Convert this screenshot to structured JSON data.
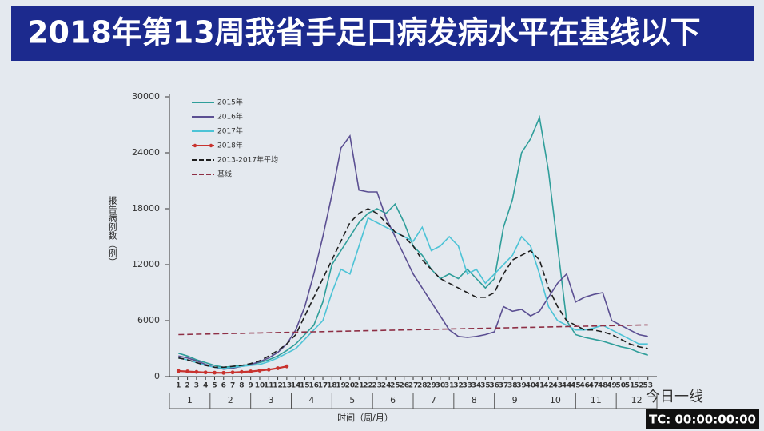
{
  "chart_data": {
    "type": "line",
    "title": "2018年第13周我省手足口病发病水平在基线以下",
    "y_label": "报告病例数（例）",
    "x_label": "时间（周/月）",
    "watermark": "今日一线",
    "timecode": "TC: 00:00:00:00",
    "x": [
      1,
      2,
      3,
      4,
      5,
      6,
      7,
      8,
      9,
      10,
      11,
      12,
      13,
      14,
      15,
      16,
      17,
      18,
      19,
      20,
      21,
      22,
      23,
      24,
      25,
      26,
      27,
      28,
      29,
      30,
      31,
      32,
      33,
      34,
      35,
      36,
      37,
      38,
      39,
      40,
      41,
      42,
      43,
      44,
      45,
      46,
      47,
      48,
      49,
      50,
      51,
      52,
      53
    ],
    "xticks": [
      1,
      2,
      3,
      4,
      5,
      6,
      7,
      8,
      9,
      10,
      11,
      12,
      13,
      14,
      15,
      16,
      17,
      18,
      19,
      20,
      21,
      22,
      23,
      24,
      25,
      26,
      27,
      28,
      29,
      30,
      31,
      32,
      33,
      34,
      35,
      36,
      37,
      38,
      39,
      40,
      41,
      42,
      43,
      44,
      45,
      46,
      47,
      48,
      49,
      50,
      51,
      52,
      53
    ],
    "xlim": [
      0,
      54
    ],
    "months": [
      "1",
      "2",
      "3",
      "4",
      "5",
      "6",
      "7",
      "8",
      "9",
      "10",
      "11",
      "12"
    ],
    "ylim": [
      0,
      30000
    ],
    "yticks": [
      0,
      6000,
      12000,
      18000,
      24000,
      30000
    ],
    "legend": "top-left",
    "series": [
      {
        "name": "2015年",
        "color": "#2f9e9a",
        "dash": false,
        "markers": false,
        "values": [
          2500,
          2200,
          1800,
          1500,
          1200,
          1000,
          1100,
          1200,
          1300,
          1500,
          1800,
          2200,
          2800,
          3500,
          4500,
          5500,
          8000,
          12000,
          13500,
          15000,
          16500,
          17500,
          18000,
          17500,
          18500,
          16500,
          14000,
          13000,
          11500,
          10500,
          11000,
          10500,
          11500,
          10500,
          9500,
          10500,
          16000,
          19000,
          24000,
          25500,
          27800,
          22000,
          14000,
          6000,
          4500,
          4200,
          4000,
          3800,
          3500,
          3200,
          3000,
          2600,
          2300
        ]
      },
      {
        "name": "2016年",
        "color": "#5b4f92",
        "dash": false,
        "markers": false,
        "values": [
          2200,
          2000,
          1700,
          1300,
          1000,
          800,
          900,
          1100,
          1300,
          1600,
          2000,
          2600,
          3500,
          5000,
          7500,
          11000,
          15000,
          19500,
          24500,
          25800,
          20000,
          19800,
          19800,
          17000,
          15000,
          13000,
          11000,
          9500,
          8000,
          6500,
          5000,
          4300,
          4200,
          4300,
          4500,
          4800,
          7500,
          7000,
          7200,
          6500,
          7000,
          8500,
          10000,
          11000,
          8000,
          8500,
          8800,
          9000,
          6000,
          5500,
          5000,
          4500,
          4300
        ]
      },
      {
        "name": "2017年",
        "color": "#4cc3d6",
        "dash": false,
        "markers": false,
        "values": [
          2000,
          1800,
          1500,
          1200,
          1000,
          900,
          1000,
          1100,
          1200,
          1300,
          1600,
          2000,
          2500,
          3000,
          4000,
          5000,
          6000,
          9000,
          11500,
          11000,
          14000,
          17000,
          16500,
          16000,
          15500,
          15000,
          14500,
          16000,
          13500,
          14000,
          15000,
          14000,
          11000,
          11500,
          10000,
          11000,
          12000,
          13000,
          15000,
          14000,
          11000,
          7500,
          6000,
          5500,
          5000,
          5000,
          5200,
          5500,
          5000,
          4500,
          4000,
          3500,
          3500
        ]
      },
      {
        "name": "2018年",
        "color": "#c8332f",
        "dash": false,
        "markers": true,
        "values": [
          600,
          550,
          500,
          450,
          420,
          400,
          450,
          500,
          550,
          650,
          750,
          900,
          1100,
          null,
          null,
          null,
          null,
          null,
          null,
          null,
          null,
          null,
          null,
          null,
          null,
          null,
          null,
          null,
          null,
          null,
          null,
          null,
          null,
          null,
          null,
          null,
          null,
          null,
          null,
          null,
          null,
          null,
          null,
          null,
          null,
          null,
          null,
          null,
          null,
          null,
          null,
          null,
          null
        ]
      },
      {
        "name": "2013-2017年平均",
        "color": "#1e1e1e",
        "dash": true,
        "markers": false,
        "values": [
          2000,
          1800,
          1500,
          1200,
          1000,
          1000,
          1100,
          1200,
          1400,
          1700,
          2200,
          2800,
          3500,
          4500,
          6500,
          8500,
          10500,
          12500,
          14500,
          16500,
          17500,
          18000,
          17500,
          16500,
          15500,
          15000,
          14000,
          12500,
          11500,
          10500,
          10000,
          9500,
          9000,
          8500,
          8500,
          9000,
          11000,
          12500,
          13000,
          13500,
          12500,
          9500,
          7500,
          6000,
          5500,
          5000,
          5000,
          4800,
          4500,
          4000,
          3500,
          3200,
          3000
        ]
      },
      {
        "name": "基线",
        "color": "#8e2f45",
        "dash": true,
        "markers": false,
        "values": [
          4500,
          4520,
          4540,
          4560,
          4580,
          4600,
          4620,
          4640,
          4660,
          4680,
          4700,
          4720,
          4740,
          4760,
          4780,
          4800,
          4820,
          4840,
          4860,
          4880,
          4900,
          4920,
          4940,
          4960,
          4980,
          5000,
          5020,
          5040,
          5060,
          5080,
          5100,
          5120,
          5140,
          5160,
          5180,
          5200,
          5220,
          5240,
          5260,
          5280,
          5300,
          5320,
          5340,
          5360,
          5380,
          5400,
          5420,
          5440,
          5460,
          5480,
          5500,
          5520,
          5540
        ]
      }
    ]
  }
}
